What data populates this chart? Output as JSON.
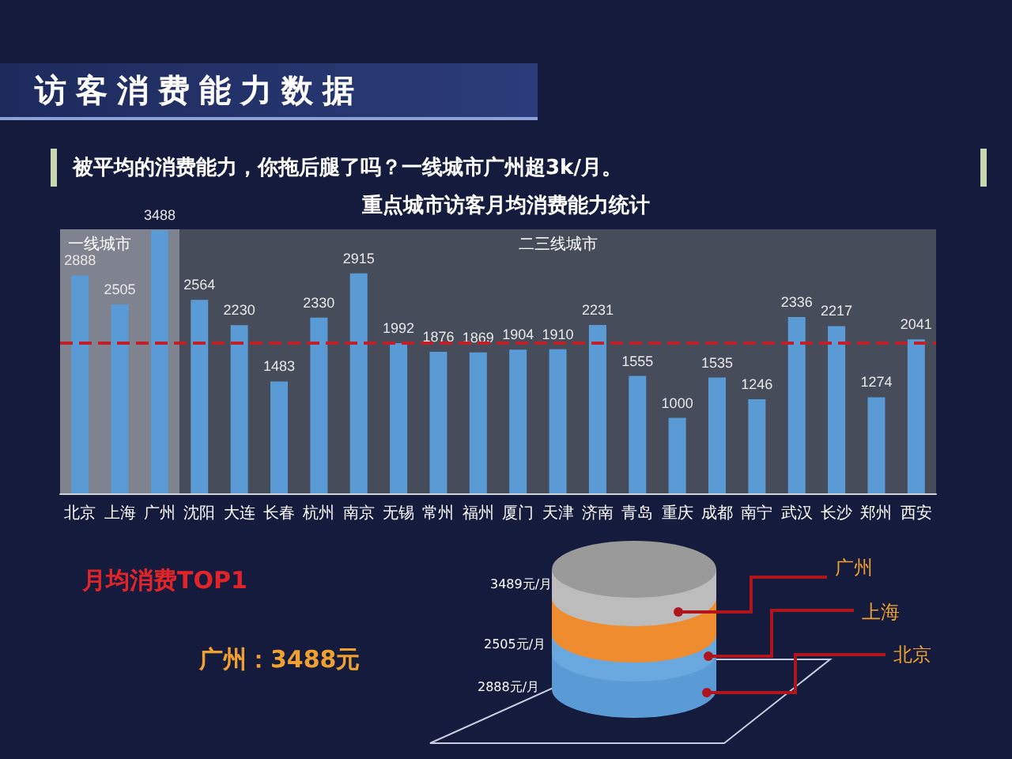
{
  "chart_data": {
    "type": "bar",
    "title": "重点城市访客月均消费能力统计",
    "categories": [
      "北京",
      "上海",
      "广州",
      "沈阳",
      "大连",
      "长春",
      "杭州",
      "南京",
      "无锡",
      "常州",
      "福州",
      "厦门",
      "天津",
      "济南",
      "青岛",
      "重庆",
      "成都",
      "南宁",
      "武汉",
      "长沙",
      "郑州",
      "西安"
    ],
    "values": [
      2888,
      2505,
      3488,
      2564,
      2230,
      1483,
      2330,
      2915,
      1992,
      1876,
      1869,
      1904,
      1910,
      2231,
      1555,
      1000,
      1535,
      1246,
      2336,
      2217,
      1274,
      2041
    ],
    "color": "#5b9bd5",
    "data_labels": true,
    "ref_lines": [
      {
        "axis": "y",
        "value": 2000,
        "color": "#c0202a",
        "line_style": "dashed"
      }
    ],
    "bands": [
      {
        "axis": "x",
        "from": "北京",
        "to": "广州",
        "label": "一线城市",
        "color": "#8b8f99"
      },
      {
        "axis": "x",
        "from": "沈阳",
        "to": "西安",
        "label": "二三线城市",
        "color": "#4d525e"
      }
    ],
    "annotations": [
      "访客消费能力数据",
      "被平均的消费能力，你拖后腿了吗？一线城市广州超3k/月。",
      "月均消费TOP1",
      "广州：3488元",
      "3489元/月",
      "2505元/月",
      "2888元/月",
      "广州",
      "上海",
      "北京"
    ]
  }
}
